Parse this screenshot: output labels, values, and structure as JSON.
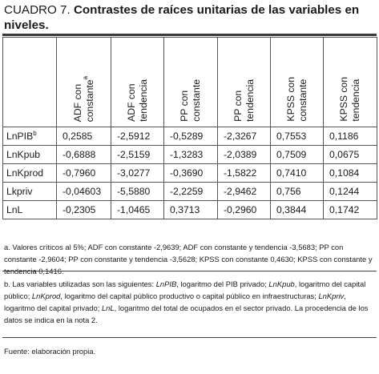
{
  "title": {
    "lead": "CUADRO 7.",
    "rest": "Contrastes de raíces unitarias de las variables en niveles."
  },
  "table": {
    "headers": [
      {
        "main": "ADF con",
        "sub": "constante",
        "sup": "a"
      },
      {
        "main": "ADF con",
        "sub": "tendencia",
        "sup": ""
      },
      {
        "main": "PP con",
        "sub": "constante",
        "sup": ""
      },
      {
        "main": "PP con",
        "sub": "tendencia",
        "sup": ""
      },
      {
        "main": "KPSS con",
        "sub": "constante",
        "sup": ""
      },
      {
        "main": "KPSS con",
        "sub": "tendencia",
        "sup": ""
      }
    ],
    "rows": [
      {
        "label": "LnPIB",
        "sup": "b",
        "values": [
          "0,2585",
          "-2,5912",
          "-0,5289",
          "-2,3267",
          "0,7553",
          "0,1186"
        ]
      },
      {
        "label": "LnKpub",
        "sup": "",
        "values": [
          "-0,6888",
          "-2,5159",
          "-1,3283",
          "-2,0389",
          "0,7509",
          "0,0675"
        ]
      },
      {
        "label": "LnKprod",
        "sup": "",
        "values": [
          "-0,7960",
          "-3,0277",
          "-0,3690",
          "-1,5822",
          "0,7410",
          "0,1084"
        ]
      },
      {
        "label": "Lkpriv",
        "sup": "",
        "values": [
          "-0,04603",
          "-5,5880",
          "-2,2259",
          "-2,9462",
          "0,756",
          "0,1244"
        ]
      },
      {
        "label": "LnL",
        "sup": "",
        "values": [
          "-0,2305",
          "-1,0465",
          "0,3713",
          "-0,2960",
          "0,3844",
          "0,1742"
        ]
      }
    ]
  },
  "notes": {
    "a": "a. Valores críticos al 5%; ADF con constante -2,9639; ADF con constante y tendencia -3,5683; PP con constante -2,9604; PP con constante y tendencia -3,5628; KPSS con constante 0,4630; KPSS con constante y tendencia 0,1416.",
    "b": [
      {
        "t": "b. Las variables utilizadas son las siguientes: ",
        "i": false
      },
      {
        "t": "LnPIB",
        "i": true
      },
      {
        "t": ", logaritmo del PIB privado; ",
        "i": false
      },
      {
        "t": "LnKpub",
        "i": true
      },
      {
        "t": ", logaritmo del capital público; ",
        "i": false
      },
      {
        "t": "LnKprod",
        "i": true
      },
      {
        "t": ", logaritmo del capital público productivo o capital público en infraestructuras; ",
        "i": false
      },
      {
        "t": "LnKpriv",
        "i": true
      },
      {
        "t": ", logaritmo del capital privado; ",
        "i": false
      },
      {
        "t": "LnL",
        "i": true
      },
      {
        "t": ", logaritmo del total de ocupados en el sector privado. La procedencia de los datos se indica en la nota 2.",
        "i": false
      }
    ],
    "source": "Fuente: elaboración propia."
  }
}
